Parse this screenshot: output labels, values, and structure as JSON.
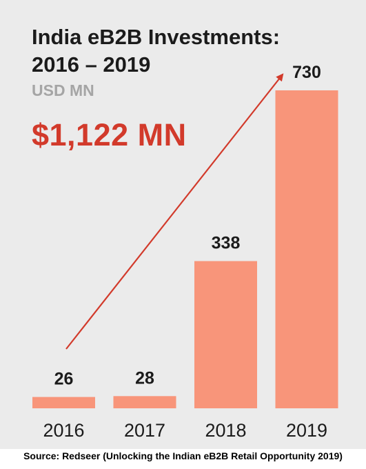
{
  "title_lines": [
    "India eB2B Investments:",
    "2016 – 2019"
  ],
  "unit_label": "USD MN",
  "total_label": "$1,122 MN",
  "source": "Source: Redseer (Unlocking the Indian eB2B Retail Opportunity 2019)",
  "colors": {
    "panel": "#ebebeb",
    "bar": "#f8957a",
    "arrow": "#d23a2b",
    "total": "#d23a2b",
    "unit": "#a5a5a5",
    "text": "#1b1b1b"
  },
  "chart_data": {
    "type": "bar",
    "categories": [
      "2016",
      "2017",
      "2018",
      "2019"
    ],
    "values": [
      26,
      28,
      338,
      730
    ],
    "data_labels": [
      "26",
      "28",
      "338",
      "730"
    ],
    "title": "India eB2B Investments: 2016 – 2019",
    "ylabel": "USD MN",
    "grid": false,
    "annotations": [
      "upward trend arrow from 2016 to 2019",
      "$1,122 MN"
    ]
  }
}
